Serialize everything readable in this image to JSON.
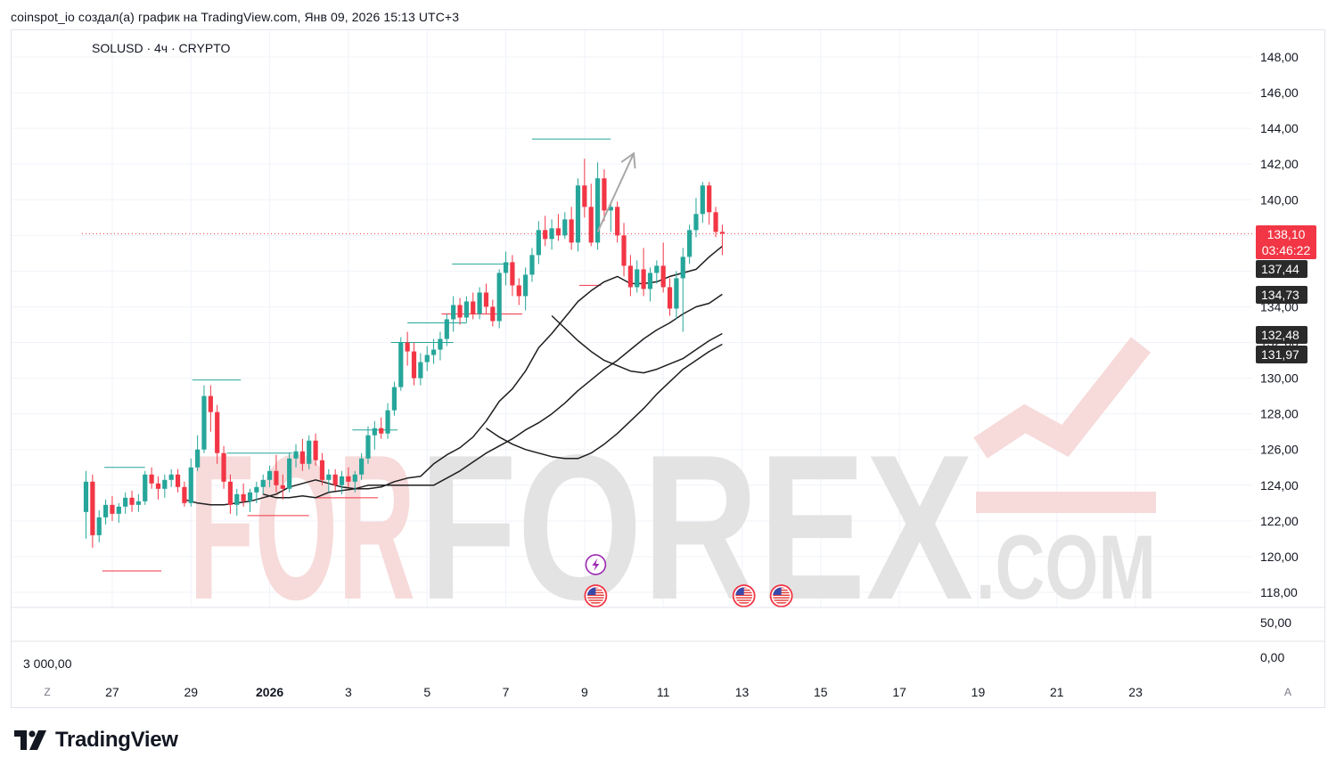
{
  "header": {
    "caption": "coinspot_io создал(а) график на TradingView.com, Янв 09, 2026 15:13 UTC+3"
  },
  "chart_header": {
    "symbol_line": "SOLUSD · 4ч · CRYPTO"
  },
  "watermark": {
    "word_light": "FOR",
    "word_dark": "FOREX",
    "suffix": ".COM",
    "color_light": "#f7dada",
    "color_dark": "#e3e3e3"
  },
  "price_badges": {
    "last_price": "138,10",
    "countdown": "03:46:22",
    "ma_1": "137,44",
    "ma_2": "134,73",
    "ma_3": "132,48",
    "ma_4": "131,97"
  },
  "sub_pane": {
    "left_value": "3 000,00",
    "right_top": "50,00",
    "right_bottom": "0,00"
  },
  "axis_buttons": {
    "left": "Z",
    "right": "A"
  },
  "branding": {
    "logo_text": "TradingView"
  },
  "colors": {
    "up": "#26a69a",
    "down": "#f23645",
    "ma": "#1e1e1e",
    "arrow": "#a8a8a8",
    "grid": "#f0f3fa",
    "axis_text": "#131722"
  },
  "chart_data": {
    "type": "candlestick",
    "title": "SOLUSD · 4ч · CRYPTO",
    "y_ticks": [
      "148,00",
      "146,00",
      "144,00",
      "142,00",
      "140,00",
      "138,00",
      "136,00",
      "134,00",
      "132,00",
      "130,00",
      "128,00",
      "126,00",
      "124,00",
      "122,00",
      "120,00",
      "118,00"
    ],
    "y_tick_values": [
      148,
      146,
      144,
      142,
      140,
      138,
      136,
      134,
      132,
      130,
      128,
      126,
      124,
      122,
      120,
      118
    ],
    "ylim": [
      117.2,
      149.2
    ],
    "x_ticks": [
      {
        "label": "27",
        "t": 4,
        "bold": false
      },
      {
        "label": "29",
        "t": 16,
        "bold": false
      },
      {
        "label": "2026",
        "t": 28,
        "bold": true
      },
      {
        "label": "3",
        "t": 40,
        "bold": false
      },
      {
        "label": "5",
        "t": 52,
        "bold": false
      },
      {
        "label": "7",
        "t": 64,
        "bold": false
      },
      {
        "label": "9",
        "t": 76,
        "bold": false
      },
      {
        "label": "11",
        "t": 88,
        "bold": false
      },
      {
        "label": "13",
        "t": 100,
        "bold": false
      },
      {
        "label": "15",
        "t": 112,
        "bold": false
      },
      {
        "label": "17",
        "t": 124,
        "bold": false
      },
      {
        "label": "19",
        "t": 136,
        "bold": false
      },
      {
        "label": "21",
        "t": 148,
        "bold": false
      },
      {
        "label": "23",
        "t": 160,
        "bold": false
      }
    ],
    "ohlc": [
      [
        122.5,
        124.8,
        121.0,
        124.2
      ],
      [
        124.2,
        124.6,
        120.5,
        121.2
      ],
      [
        121.2,
        122.6,
        120.8,
        122.2
      ],
      [
        122.2,
        123.2,
        121.8,
        122.9
      ],
      [
        122.9,
        123.4,
        122.0,
        122.4
      ],
      [
        122.4,
        123.0,
        121.9,
        122.8
      ],
      [
        122.8,
        123.6,
        122.4,
        123.3
      ],
      [
        123.3,
        123.7,
        122.5,
        122.9
      ],
      [
        122.9,
        123.5,
        122.5,
        123.1
      ],
      [
        123.1,
        124.8,
        122.9,
        124.6
      ],
      [
        124.6,
        125.0,
        123.8,
        124.1
      ],
      [
        124.1,
        124.5,
        123.2,
        123.8
      ],
      [
        123.8,
        124.6,
        123.3,
        124.3
      ],
      [
        124.3,
        124.9,
        123.9,
        124.6
      ],
      [
        124.6,
        124.9,
        123.6,
        123.9
      ],
      [
        123.9,
        124.2,
        122.8,
        123.0
      ],
      [
        123.0,
        125.5,
        122.8,
        125.0
      ],
      [
        125.0,
        126.8,
        124.8,
        126.0
      ],
      [
        126.0,
        129.6,
        125.8,
        129.0
      ],
      [
        129.0,
        129.6,
        127.0,
        128.1
      ],
      [
        128.1,
        128.5,
        125.2,
        125.8
      ],
      [
        125.8,
        126.2,
        123.8,
        124.2
      ],
      [
        124.2,
        124.6,
        122.4,
        122.9
      ],
      [
        122.9,
        123.8,
        122.3,
        123.5
      ],
      [
        123.5,
        124.1,
        122.8,
        123.1
      ],
      [
        123.1,
        123.8,
        122.5,
        123.6
      ],
      [
        123.6,
        124.2,
        123.0,
        123.9
      ],
      [
        123.9,
        124.6,
        123.5,
        124.3
      ],
      [
        124.3,
        125.1,
        123.9,
        124.8
      ],
      [
        124.8,
        125.7,
        123.6,
        124.0
      ],
      [
        124.0,
        124.6,
        123.2,
        123.8
      ],
      [
        123.8,
        125.8,
        123.6,
        125.5
      ],
      [
        125.5,
        126.3,
        125.0,
        125.9
      ],
      [
        125.9,
        126.6,
        124.8,
        125.2
      ],
      [
        125.2,
        126.8,
        124.9,
        126.5
      ],
      [
        126.5,
        126.9,
        125.1,
        125.4
      ],
      [
        125.4,
        125.8,
        124.0,
        124.3
      ],
      [
        124.3,
        124.9,
        123.6,
        124.6
      ],
      [
        124.6,
        124.9,
        123.7,
        124.0
      ],
      [
        124.0,
        124.8,
        123.5,
        124.5
      ],
      [
        124.5,
        125.0,
        123.9,
        124.2
      ],
      [
        124.2,
        124.8,
        123.6,
        124.6
      ],
      [
        124.6,
        125.8,
        124.3,
        125.5
      ],
      [
        125.5,
        127.3,
        125.2,
        126.8
      ],
      [
        126.8,
        127.6,
        126.0,
        127.2
      ],
      [
        127.2,
        127.8,
        126.6,
        126.9
      ],
      [
        126.9,
        128.6,
        126.6,
        128.2
      ],
      [
        128.2,
        129.8,
        127.9,
        129.5
      ],
      [
        129.5,
        132.3,
        129.3,
        132.0
      ],
      [
        132.0,
        132.6,
        130.7,
        131.5
      ],
      [
        131.5,
        132.0,
        129.6,
        130.0
      ],
      [
        130.0,
        131.4,
        129.6,
        130.9
      ],
      [
        130.9,
        131.8,
        130.4,
        131.3
      ],
      [
        131.3,
        132.2,
        130.8,
        131.6
      ],
      [
        131.6,
        132.6,
        131.0,
        132.2
      ],
      [
        132.2,
        133.6,
        131.8,
        133.3
      ],
      [
        133.3,
        134.6,
        132.6,
        134.1
      ],
      [
        134.1,
        134.5,
        133.0,
        133.4
      ],
      [
        133.4,
        134.6,
        133.1,
        134.3
      ],
      [
        134.3,
        134.8,
        133.3,
        133.6
      ],
      [
        133.6,
        135.1,
        133.3,
        134.8
      ],
      [
        134.8,
        135.3,
        133.6,
        134.0
      ],
      [
        134.0,
        134.4,
        132.9,
        133.2
      ],
      [
        133.2,
        136.1,
        132.8,
        135.9
      ],
      [
        135.9,
        137.1,
        135.2,
        136.5
      ],
      [
        136.5,
        136.9,
        134.6,
        135.2
      ],
      [
        135.2,
        135.6,
        134.1,
        134.6
      ],
      [
        134.6,
        136.2,
        133.8,
        135.8
      ],
      [
        135.8,
        137.3,
        135.4,
        136.9
      ],
      [
        136.9,
        138.8,
        136.4,
        138.3
      ],
      [
        138.3,
        139.1,
        137.4,
        137.8
      ],
      [
        137.8,
        138.9,
        137.2,
        138.4
      ],
      [
        138.4,
        139.2,
        137.7,
        138.0
      ],
      [
        138.0,
        139.3,
        137.8,
        138.9
      ],
      [
        138.9,
        139.6,
        137.2,
        137.6
      ],
      [
        137.6,
        141.2,
        137.1,
        140.8
      ],
      [
        140.8,
        142.3,
        139.0,
        139.6
      ],
      [
        139.6,
        140.9,
        137.4,
        137.6
      ],
      [
        137.6,
        142.1,
        137.2,
        141.2
      ],
      [
        141.2,
        141.7,
        138.8,
        139.4
      ],
      [
        139.4,
        139.8,
        138.2,
        139.6
      ],
      [
        139.6,
        139.9,
        137.6,
        138.0
      ],
      [
        138.0,
        138.7,
        135.7,
        136.3
      ],
      [
        136.3,
        136.9,
        134.6,
        135.1
      ],
      [
        135.1,
        136.6,
        134.8,
        136.1
      ],
      [
        136.1,
        137.3,
        134.6,
        135.0
      ],
      [
        135.0,
        136.2,
        134.3,
        135.9
      ],
      [
        135.9,
        136.6,
        135.3,
        136.3
      ],
      [
        136.3,
        137.6,
        134.8,
        135.1
      ],
      [
        135.1,
        135.6,
        133.5,
        133.9
      ],
      [
        133.9,
        136.0,
        133.3,
        135.6
      ],
      [
        135.6,
        137.3,
        132.6,
        136.8
      ],
      [
        136.8,
        138.6,
        136.4,
        138.3
      ],
      [
        138.3,
        140.1,
        137.9,
        139.2
      ],
      [
        139.2,
        141.0,
        138.7,
        140.8
      ],
      [
        140.8,
        141.0,
        138.6,
        139.3
      ],
      [
        139.3,
        139.6,
        137.9,
        138.2
      ],
      [
        138.2,
        138.6,
        136.9,
        138.1
      ]
    ],
    "series": [
      {
        "name": "",
        "values": [
          123.2,
          123.0,
          122.9,
          122.9,
          123.0,
          123.1,
          123.3,
          123.5,
          123.9,
          124.1,
          124.3,
          124.1,
          123.9,
          123.8,
          123.8,
          123.9,
          124.2,
          124.4,
          124.5,
          125.2,
          125.7,
          126.1,
          126.7,
          127.6,
          128.7,
          129.4,
          130.4,
          131.7,
          132.5,
          133.4,
          134.3,
          134.9,
          135.4,
          135.7,
          135.3,
          135.3,
          135.4,
          135.7,
          135.9,
          136.1,
          136.8,
          137.4
        ]
      },
      {
        "name": "",
        "values": [
          123.5,
          123.3,
          123.3,
          123.4,
          123.3,
          123.6,
          123.7,
          123.8,
          124.0,
          124.0,
          124.0,
          124.0,
          124.0,
          124.0,
          124.4,
          124.8,
          125.3,
          125.8,
          126.2,
          126.6,
          127.1,
          127.5,
          128.0,
          128.6,
          129.3,
          129.9,
          130.5,
          131.0,
          131.6,
          132.2,
          132.7,
          133.1,
          133.6,
          134.0,
          134.2,
          134.7
        ]
      },
      {
        "name": "",
        "values": [
          133.5,
          132.8,
          132.1,
          131.5,
          131.0,
          130.7,
          130.4,
          130.3,
          130.5,
          130.8,
          131.1,
          131.6,
          132.1,
          132.5
        ]
      },
      {
        "name": "",
        "values": [
          127.2,
          126.7,
          126.3,
          126.0,
          125.8,
          125.6,
          125.5,
          125.5,
          125.8,
          126.3,
          126.9,
          127.6,
          128.3,
          129.1,
          129.8,
          130.5,
          131.0,
          131.5,
          131.9
        ]
      }
    ],
    "level_lines": [
      {
        "price": 143.4,
        "t1": 68.0,
        "t2": 80.0,
        "color": "#26a69a"
      },
      {
        "price": 136.4,
        "t1": 55.8,
        "t2": 64.5,
        "color": "#26a69a"
      },
      {
        "price": 135.2,
        "t1": 75.2,
        "t2": 78.5,
        "color": "#f23645"
      },
      {
        "price": 133.6,
        "t1": 54.2,
        "t2": 66.5,
        "color": "#f23645"
      },
      {
        "price": 133.1,
        "t1": 49.0,
        "t2": 58.0,
        "color": "#26a69a"
      },
      {
        "price": 132.0,
        "t1": 46.5,
        "t2": 56.0,
        "color": "#26a69a"
      },
      {
        "price": 129.9,
        "t1": 16.2,
        "t2": 23.6,
        "color": "#26a69a"
      },
      {
        "price": 127.1,
        "t1": 40.6,
        "t2": 47.5,
        "color": "#26a69a"
      },
      {
        "price": 125.8,
        "t1": 21.5,
        "t2": 31.5,
        "color": "#26a69a"
      },
      {
        "price": 125.0,
        "t1": 2.8,
        "t2": 9.0,
        "color": "#26a69a"
      },
      {
        "price": 123.3,
        "t1": 34.9,
        "t2": 44.5,
        "color": "#f23645"
      },
      {
        "price": 122.3,
        "t1": 24.6,
        "t2": 34.0,
        "color": "#f23645"
      },
      {
        "price": 119.2,
        "t1": 2.5,
        "t2": 11.5,
        "color": "#f23645"
      }
    ],
    "markers": [
      {
        "type": "lightning",
        "t": 77.7,
        "y_price": 119.55
      },
      {
        "type": "us-flag",
        "t": 77.7,
        "y_price": 117.8
      },
      {
        "type": "us-flag",
        "t": 100.3,
        "y_price": 117.8
      },
      {
        "type": "us-flag",
        "t": 106.0,
        "y_price": 117.8
      }
    ],
    "arrow": {
      "t1": 78.0,
      "p1": 138.2,
      "t2": 83.5,
      "p2": 142.6
    },
    "last_price_line": 138.1
  }
}
